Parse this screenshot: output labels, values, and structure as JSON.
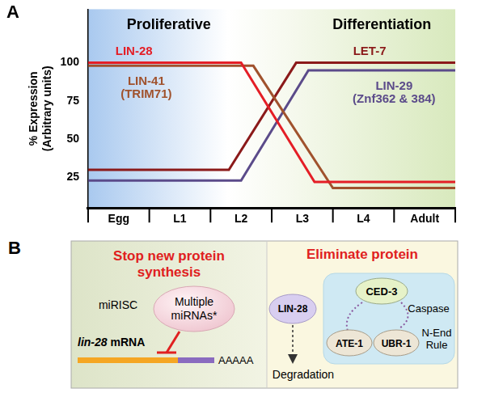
{
  "panel_labels": [
    "A",
    "B"
  ],
  "chart_data": {
    "type": "line",
    "xlim": [
      0,
      6
    ],
    "xticks": [
      {
        "value": 0.5,
        "label": "Egg"
      },
      {
        "value": 1.5,
        "label": "L1"
      },
      {
        "value": 2.5,
        "label": "L2"
      },
      {
        "value": 3.5,
        "label": "L3"
      },
      {
        "value": 4.5,
        "label": "L4"
      },
      {
        "value": 5.5,
        "label": "Adult"
      }
    ],
    "ylim": [
      5,
      135
    ],
    "yticks": [
      25,
      50,
      75,
      100
    ],
    "ylabel": [
      "% Expression",
      "(Arbitrary units)"
    ],
    "grid": false,
    "annotations": [
      "Proliferative",
      "Differentiation"
    ],
    "series": [
      {
        "name": "LIN-28",
        "color": "#e41e26",
        "x": [
          0,
          2.5,
          3.7,
          6
        ],
        "values": [
          100,
          100,
          22,
          22
        ]
      },
      {
        "name": "LIN-41 (TRIM71)",
        "color": "#a0522d",
        "x": [
          0,
          2.7,
          4.0,
          6
        ],
        "values": [
          98,
          98,
          18,
          18
        ]
      },
      {
        "name": "LET-7",
        "color": "#8b1a1a",
        "x": [
          0,
          2.3,
          3.4,
          6
        ],
        "values": [
          30,
          30,
          100,
          100
        ]
      },
      {
        "name": "LIN-29 (Znf362 & 384)",
        "color": "#5b4b8a",
        "x": [
          0,
          2.5,
          3.6,
          6
        ],
        "values": [
          23,
          23,
          95,
          95
        ]
      }
    ]
  },
  "diagram": {
    "left": {
      "title": [
        "Stop new protein",
        "synthesis"
      ],
      "complex": "miRISC",
      "mirnas": "Multiple miRNAs*",
      "mrna": "lin-28 mRNA",
      "poly_a": "AAAAA"
    },
    "right": {
      "title": "Eliminate protein",
      "protein": "LIN-28",
      "fate": "Degradation",
      "caspase": {
        "name": "CED-3",
        "label": "Caspase"
      },
      "n_end_rule": {
        "members": [
          "ATE-1",
          "UBR-1"
        ],
        "label": "N-End Rule"
      }
    }
  }
}
